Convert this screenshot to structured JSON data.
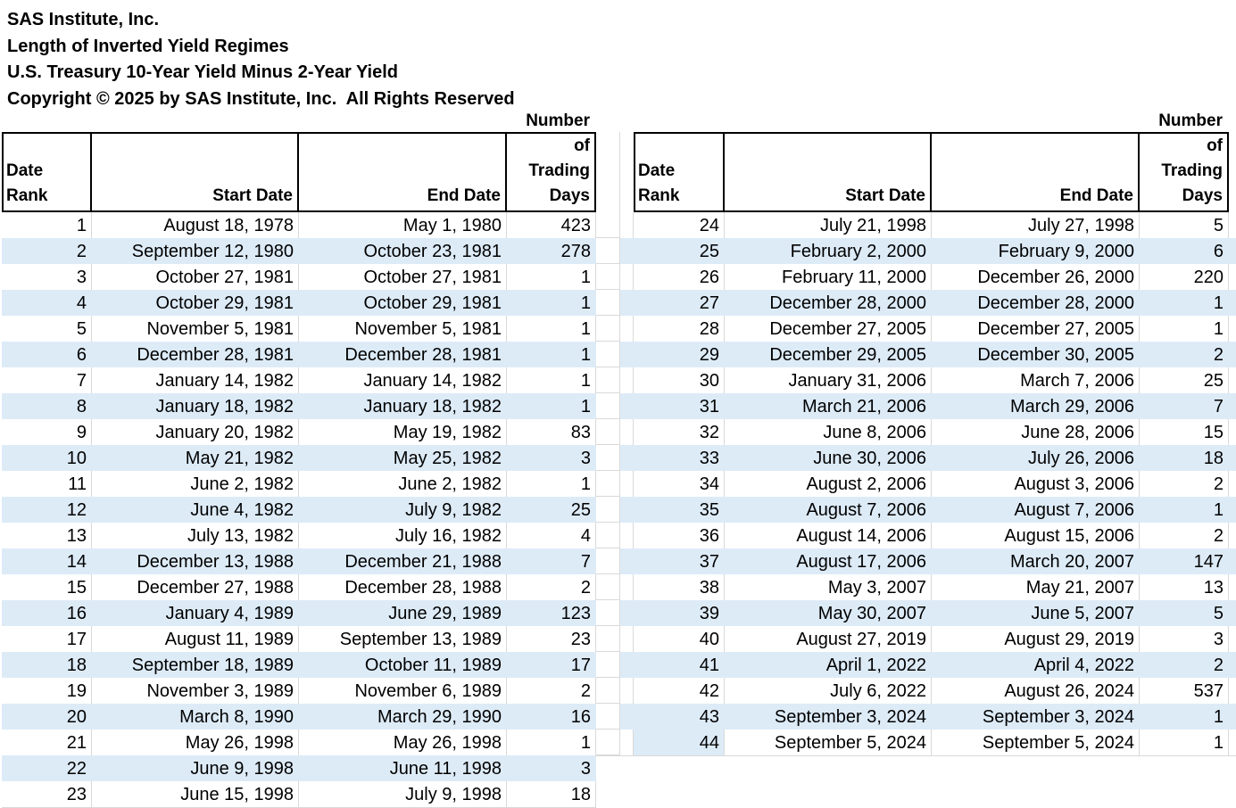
{
  "titles": {
    "company": "SAS Institute, Inc.",
    "report": "Length of Inverted Yield Regimes",
    "subtitle": "U.S. Treasury 10-Year Yield Minus 2-Year Yield",
    "copyright": "Copyright © 2025 by SAS Institute, Inc.  All Rights Reserved"
  },
  "chart_data": {
    "type": "table",
    "title": "Length of Inverted Yield Regimes",
    "subtitle": "U.S. Treasury 10-Year Yield Minus 2-Year Yield",
    "columns": [
      "Date Rank",
      "Start Date",
      "End Date",
      "Number of Trading Days"
    ],
    "columns_display": [
      "Date Rank",
      "Start Date",
      "End Date",
      "Number\nof Trading\nDays"
    ],
    "left_rows": [
      [
        1,
        "August 18, 1978",
        "May 1, 1980",
        423
      ],
      [
        2,
        "September 12, 1980",
        "October 23, 1981",
        278
      ],
      [
        3,
        "October 27, 1981",
        "October 27, 1981",
        1
      ],
      [
        4,
        "October 29, 1981",
        "October 29, 1981",
        1
      ],
      [
        5,
        "November 5, 1981",
        "November 5, 1981",
        1
      ],
      [
        6,
        "December 28, 1981",
        "December 28, 1981",
        1
      ],
      [
        7,
        "January 14, 1982",
        "January 14, 1982",
        1
      ],
      [
        8,
        "January 18, 1982",
        "January 18, 1982",
        1
      ],
      [
        9,
        "January 20, 1982",
        "May 19, 1982",
        83
      ],
      [
        10,
        "May 21, 1982",
        "May 25, 1982",
        3
      ],
      [
        11,
        "June 2, 1982",
        "June 2, 1982",
        1
      ],
      [
        12,
        "June 4, 1982",
        "July 9, 1982",
        25
      ],
      [
        13,
        "July 13, 1982",
        "July 16, 1982",
        4
      ],
      [
        14,
        "December 13, 1988",
        "December 21, 1988",
        7
      ],
      [
        15,
        "December 27, 1988",
        "December 28, 1988",
        2
      ],
      [
        16,
        "January 4, 1989",
        "June 29, 1989",
        123
      ],
      [
        17,
        "August 11, 1989",
        "September 13, 1989",
        23
      ],
      [
        18,
        "September 18, 1989",
        "October 11, 1989",
        17
      ],
      [
        19,
        "November 3, 1989",
        "November 6, 1989",
        2
      ],
      [
        20,
        "March 8, 1990",
        "March 29, 1990",
        16
      ],
      [
        21,
        "May 26, 1998",
        "May 26, 1998",
        1
      ],
      [
        22,
        "June 9, 1998",
        "June 11, 1998",
        3
      ],
      [
        23,
        "June 15, 1998",
        "July 9, 1998",
        18
      ]
    ],
    "right_rows": [
      [
        24,
        "July 21, 1998",
        "July 27, 1998",
        5
      ],
      [
        25,
        "February 2, 2000",
        "February 9, 2000",
        6
      ],
      [
        26,
        "February 11, 2000",
        "December 26, 2000",
        220
      ],
      [
        27,
        "December 28, 2000",
        "December 28, 2000",
        1
      ],
      [
        28,
        "December 27, 2005",
        "December 27, 2005",
        1
      ],
      [
        29,
        "December 29, 2005",
        "December 30, 2005",
        2
      ],
      [
        30,
        "January 31, 2006",
        "March 7, 2006",
        25
      ],
      [
        31,
        "March 21, 2006",
        "March 29, 2006",
        7
      ],
      [
        32,
        "June 8, 2006",
        "June 28, 2006",
        15
      ],
      [
        33,
        "June 30, 2006",
        "July 26, 2006",
        18
      ],
      [
        34,
        "August 2, 2006",
        "August 3, 2006",
        2
      ],
      [
        35,
        "August 7, 2006",
        "August 7, 2006",
        1
      ],
      [
        36,
        "August 14, 2006",
        "August 15, 2006",
        2
      ],
      [
        37,
        "August 17, 2006",
        "March 20, 2007",
        147
      ],
      [
        38,
        "May 3, 2007",
        "May 21, 2007",
        13
      ],
      [
        39,
        "May 30, 2007",
        "June 5, 2007",
        5
      ],
      [
        40,
        "August 27, 2019",
        "August 29, 2019",
        3
      ],
      [
        41,
        "April 1, 2022",
        "April 4, 2022",
        2
      ],
      [
        42,
        "July 6, 2022",
        "August 26, 2024",
        537
      ],
      [
        43,
        "September 3, 2024",
        "September 3, 2024",
        1
      ],
      [
        44,
        "September 5, 2024",
        "September 5, 2024",
        1
      ]
    ]
  },
  "colors": {
    "band_stripe": "#DDEBF7",
    "gridline": "#D9D9D9",
    "table_border": "#000000",
    "text": "#000000",
    "background": "#FFFFFF"
  }
}
